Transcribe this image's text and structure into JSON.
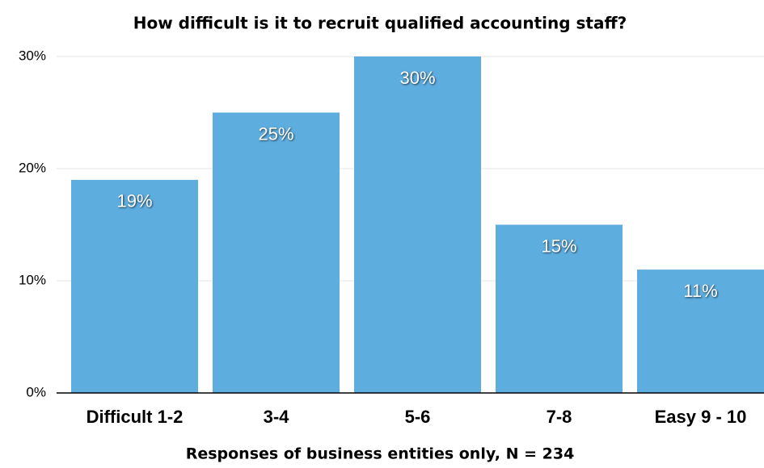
{
  "chart_data": {
    "type": "bar",
    "title": "How difficult is it to recruit qualified accounting staff?",
    "x_label": "Responses of business entities only, N = 234",
    "categories": [
      "Difficult 1-2",
      "3-4",
      "5-6",
      "7-8",
      "Easy 9 - 10"
    ],
    "values": [
      19,
      25,
      30,
      15,
      11
    ],
    "value_labels": [
      "19%",
      "25%",
      "30%",
      "15%",
      "11%"
    ],
    "color": "#5eaddf",
    "ylim": [
      0,
      30
    ],
    "yticks": [
      {
        "value": 0,
        "label": "0%"
      },
      {
        "value": 10,
        "label": "10%"
      },
      {
        "value": 20,
        "label": "20%"
      },
      {
        "value": 30,
        "label": "30%"
      }
    ],
    "grid": true
  }
}
